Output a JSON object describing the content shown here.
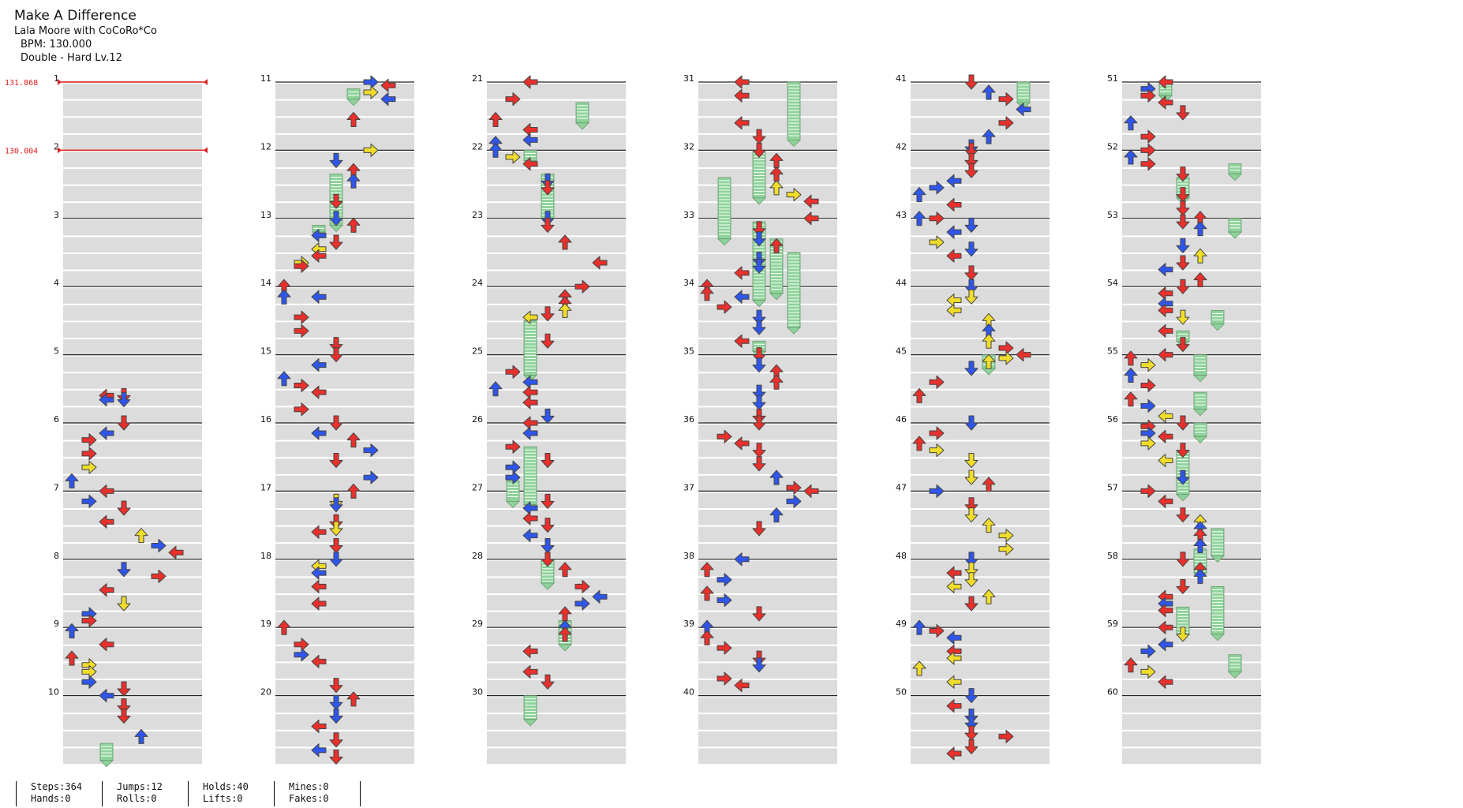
{
  "header": {
    "title": "Make A Difference",
    "artist": "Lala Moore with CoCoRo*Co",
    "bpm": "BPM: 130.000",
    "difficulty": "Double - Hard Lv.12"
  },
  "bpm_changes": [
    {
      "measure": 1,
      "label": "131.868"
    },
    {
      "measure": 2,
      "label": "130.004"
    }
  ],
  "measures": [
    "1",
    "2",
    "3",
    "4",
    "5",
    "6",
    "7",
    "8",
    "9",
    "10",
    "11",
    "12",
    "13",
    "14",
    "15",
    "16",
    "17",
    "18",
    "19",
    "20",
    "21",
    "22",
    "23",
    "24",
    "25",
    "26",
    "27",
    "28",
    "29",
    "30",
    "31",
    "32",
    "33",
    "34",
    "35",
    "36",
    "37",
    "38",
    "39",
    "40",
    "41",
    "42",
    "43",
    "44",
    "45",
    "46",
    "47",
    "48",
    "49",
    "50",
    "51",
    "52",
    "53",
    "54",
    "55",
    "56",
    "57",
    "58",
    "59",
    "60"
  ],
  "colors": {
    "quarter": "#e8302c",
    "eighth": "#2f56ea",
    "sixteenth": "#f0dc2a",
    "hold": "#8ed39a",
    "band": "#dcdcdc",
    "bpm": "#e02020"
  },
  "stats": [
    {
      "top": "Steps:364",
      "bottom": "Hands:0"
    },
    {
      "top": "Jumps:12",
      "bottom": "Rolls:0"
    },
    {
      "top": "Holds:40",
      "bottom": "Lifts:0"
    },
    {
      "top": "Mines:0",
      "bottom": "Fakes:0"
    }
  ]
}
